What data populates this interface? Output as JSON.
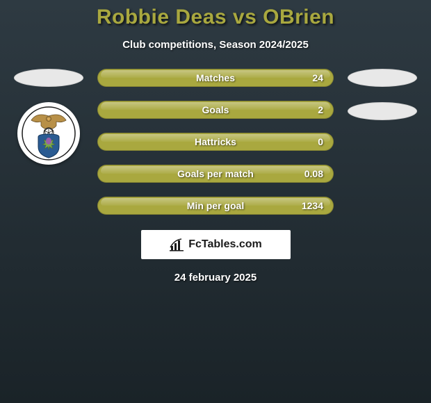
{
  "title": "Robbie Deas vs OBrien",
  "subtitle": "Club competitions, Season 2024/2025",
  "date": "24 february 2025",
  "brand": "FcTables.com",
  "colors": {
    "accent": "#a9a83f",
    "bg_top": "#2e3a42",
    "bg_bottom": "#1a2328",
    "text": "#ffffff",
    "ellipse": "#e8e8e8",
    "brand_bg": "#ffffff",
    "brand_text": "#1a1a1a"
  },
  "left_badge": {
    "name": "club-badge-left",
    "bird_color": "#b89048",
    "thistle_color": "#2a5b92",
    "ball_color": "#ffffff"
  },
  "stats": [
    {
      "label": "Matches",
      "value": "24"
    },
    {
      "label": "Goals",
      "value": "2"
    },
    {
      "label": "Hattricks",
      "value": "0"
    },
    {
      "label": "Goals per match",
      "value": "0.08"
    },
    {
      "label": "Min per goal",
      "value": "1234"
    }
  ],
  "right_placeholders": 2
}
